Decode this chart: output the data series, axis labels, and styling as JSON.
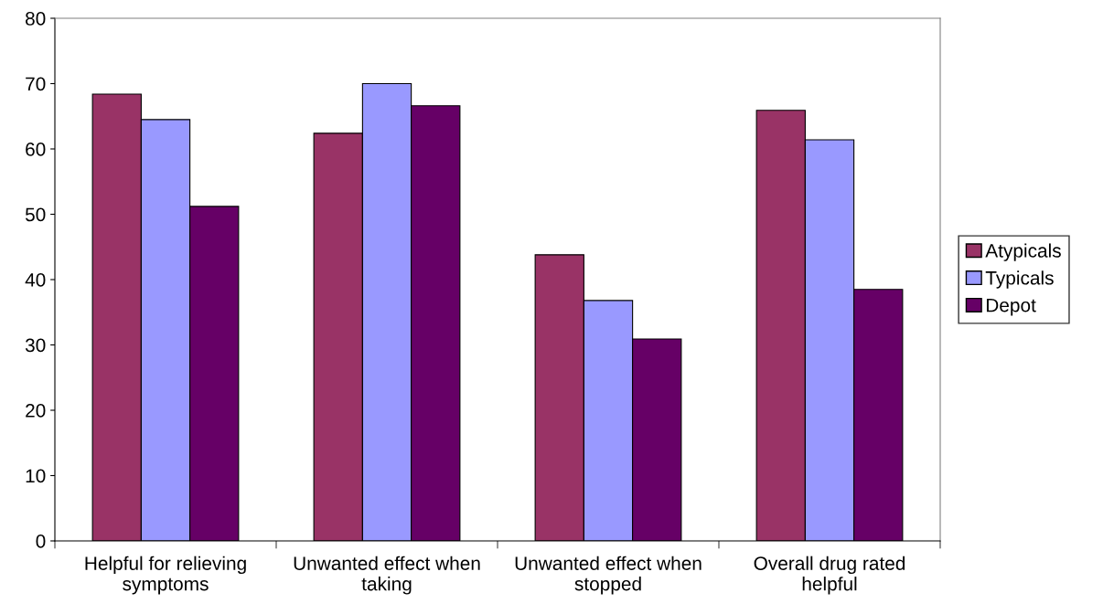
{
  "chart_data": {
    "type": "bar",
    "categories": [
      "Helpful for relieving symptoms",
      "Unwanted effect when taking",
      "Unwanted effect when stopped",
      "Overall drug rated helpful"
    ],
    "series": [
      {
        "name": "Atypicals",
        "color": "#993366",
        "values": [
          68.4,
          62.4,
          43.8,
          65.9
        ]
      },
      {
        "name": "Typicals",
        "color": "#9999ff",
        "values": [
          64.5,
          70.0,
          36.8,
          61.4
        ]
      },
      {
        "name": "Depot",
        "color": "#660066",
        "values": [
          51.2,
          66.6,
          30.9,
          38.5
        ]
      }
    ],
    "ylim": [
      0,
      80
    ],
    "yticks": [
      0,
      10,
      20,
      30,
      40,
      50,
      60,
      70,
      80
    ],
    "grid": false,
    "legend": "right"
  }
}
